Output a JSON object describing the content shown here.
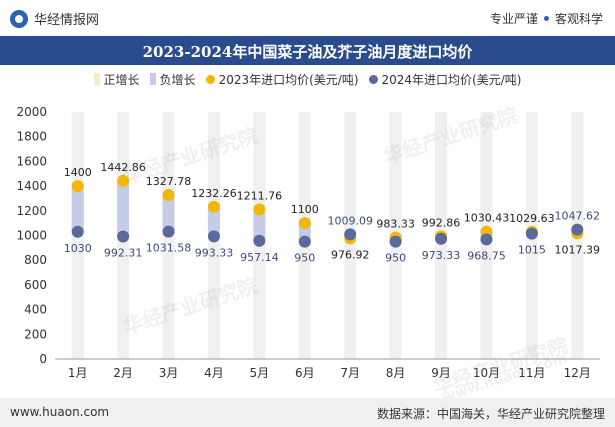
{
  "header": {
    "brand_name": "华经情报网",
    "tagline_left": "专业严谨",
    "tagline_right": "客观科学"
  },
  "footer": {
    "url": "www.huaon.com",
    "source": "数据来源：中国海关，华经产业研究院整理"
  },
  "watermarks": [
    "华经产业研究院",
    "www.huaon.com"
  ],
  "colors": {
    "title_bar": "#2b4c8c",
    "series_2023": "#f2b705",
    "series_2024": "#5a6a9a",
    "positive_bar": "#f7ecc8",
    "negative_bar": "#c5cde6"
  },
  "chart_data": {
    "type": "dumbbell",
    "title": "2023-2024年中国菜子油及芥子油月度进口均价",
    "categories": [
      "1月",
      "2月",
      "3月",
      "4月",
      "5月",
      "6月",
      "7月",
      "8月",
      "9月",
      "10月",
      "11月",
      "12月"
    ],
    "legend": [
      "正增长",
      "负增长",
      "2023年进口均价(美元/吨)",
      "2024年进口均价(美元/吨)"
    ],
    "series": [
      {
        "name": "2023年进口均价(美元/吨)",
        "values": [
          1400,
          1442.86,
          1327.78,
          1232.26,
          1211.76,
          1100,
          976.92,
          983.33,
          992.86,
          1030.43,
          1029.63,
          1017.39
        ]
      },
      {
        "name": "2024年进口均价(美元/吨)",
        "values": [
          1030,
          992.31,
          1031.58,
          993.33,
          957.14,
          950,
          1009.09,
          950,
          973.33,
          968.75,
          1015,
          1047.62
        ]
      }
    ],
    "labels_2023": [
      "1400",
      "1442.86",
      "1327.78",
      "1232.26",
      "1211.76",
      "1100",
      "976.92",
      "983.33",
      "992.86",
      "1030.43",
      "1029.63",
      "1017.39"
    ],
    "labels_2024": [
      "1030",
      "992.31",
      "1031.58",
      "993.33",
      "957.14",
      "950",
      "1009.09",
      "950",
      "973.33",
      "968.75",
      "1015",
      "1047.62"
    ],
    "ylim": [
      0,
      2000
    ],
    "yticks": [
      0,
      200,
      400,
      600,
      800,
      1000,
      1200,
      1400,
      1600,
      1800,
      2000
    ],
    "ytick_labels": [
      "0",
      "200",
      "400",
      "600",
      "800",
      "1000",
      "1200",
      "1400",
      "1600",
      "1800",
      "2000"
    ],
    "xlabel": "",
    "ylabel": ""
  }
}
